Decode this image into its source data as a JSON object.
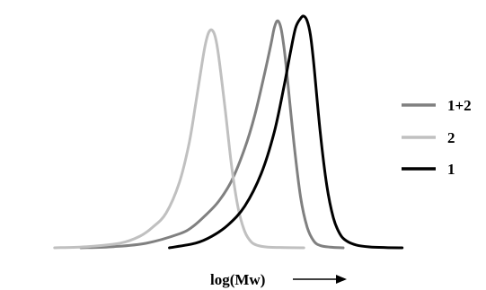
{
  "chart_data": {
    "type": "line",
    "xlabel": "log(Mw)",
    "axis_arrow": true,
    "x_range": [
      0,
      100
    ],
    "y_range": [
      0,
      1
    ],
    "grid": false,
    "legend_position": "right",
    "series": [
      {
        "name": "1+2",
        "color": "#808080",
        "x": [
          0,
          10,
          20,
          30,
          34,
          38,
          42,
          46,
          50,
          53,
          56,
          58,
          59,
          60,
          61,
          62,
          63,
          65,
          67,
          69,
          71,
          73,
          76,
          80
        ],
        "y": [
          0,
          0.005,
          0.02,
          0.06,
          0.09,
          0.14,
          0.2,
          0.29,
          0.43,
          0.57,
          0.75,
          0.88,
          0.95,
          0.98,
          0.95,
          0.86,
          0.73,
          0.45,
          0.22,
          0.09,
          0.03,
          0.01,
          0.003,
          0
        ]
      },
      {
        "name": "2",
        "color": "#c0c0c0",
        "x": [
          -8,
          2,
          12,
          18,
          22,
          26,
          30,
          33,
          35,
          37,
          38,
          39,
          40,
          41,
          42,
          44,
          46,
          48,
          50,
          52,
          54,
          57,
          62,
          68
        ],
        "y": [
          0,
          0.005,
          0.02,
          0.05,
          0.09,
          0.15,
          0.28,
          0.45,
          0.62,
          0.8,
          0.88,
          0.93,
          0.94,
          0.91,
          0.83,
          0.6,
          0.35,
          0.17,
          0.07,
          0.025,
          0.01,
          0.003,
          0.001,
          0
        ]
      },
      {
        "name": "1",
        "color": "#000000",
        "x": [
          27,
          35,
          40,
          45,
          50,
          55,
          59,
          62,
          64,
          65.5,
          67,
          68,
          69,
          70,
          71,
          73,
          75,
          77,
          79,
          81,
          84,
          88,
          93,
          98
        ],
        "y": [
          0,
          0.02,
          0.05,
          0.1,
          0.18,
          0.32,
          0.5,
          0.7,
          0.85,
          0.95,
          0.99,
          1.0,
          0.98,
          0.92,
          0.8,
          0.5,
          0.27,
          0.13,
          0.06,
          0.03,
          0.012,
          0.004,
          0.001,
          0
        ]
      }
    ],
    "legend": [
      {
        "label": "1+2",
        "color": "#808080"
      },
      {
        "label": "2",
        "color": "#c0c0c0"
      },
      {
        "label": "1",
        "color": "#000000"
      }
    ]
  }
}
